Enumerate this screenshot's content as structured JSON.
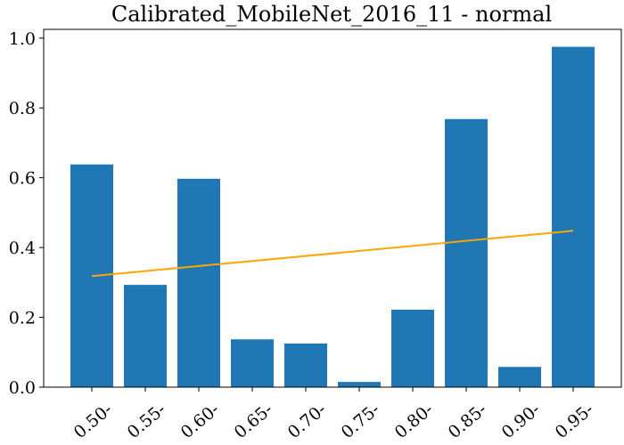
{
  "chart_data": {
    "type": "bar",
    "title": "Calibrated_MobileNet_2016_11 - normal",
    "xlabel": "",
    "ylabel": "",
    "categories": [
      "0.50-",
      "0.55-",
      "0.60-",
      "0.65-",
      "0.70-",
      "0.75-",
      "0.80-",
      "0.85-",
      "0.90-",
      "0.95-"
    ],
    "values": [
      0.638,
      0.293,
      0.597,
      0.137,
      0.125,
      0.015,
      0.222,
      0.768,
      0.058,
      0.975
    ],
    "ylim": [
      0,
      1.025
    ],
    "yticks": [
      0.0,
      0.2,
      0.4,
      0.6,
      0.8,
      1.0
    ],
    "ytick_labels": [
      "0.0",
      "0.2",
      "0.4",
      "0.6",
      "0.8",
      "1.0"
    ],
    "trend_line": {
      "x_start": "0.50-",
      "x_end": "0.95-",
      "y_start": 0.318,
      "y_end": 0.448
    },
    "grid": false,
    "colors": {
      "bar": "#1f77b4",
      "line": "#ffa500"
    }
  }
}
